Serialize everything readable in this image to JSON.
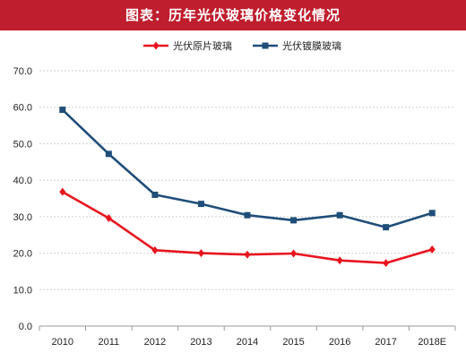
{
  "header": {
    "title": "图表：历年光伏玻璃价格变化情况",
    "background": "#bf1e2e"
  },
  "chart_data": {
    "type": "line",
    "categories": [
      "2010",
      "2011",
      "2012",
      "2013",
      "2014",
      "2015",
      "2016",
      "2017",
      "2018E"
    ],
    "series": [
      {
        "name": "光伏原片玻璃",
        "color": "#e8141e",
        "marker": "diamond",
        "values": [
          36.8,
          29.6,
          20.8,
          20.0,
          19.6,
          19.9,
          18.0,
          17.3,
          21.0
        ]
      },
      {
        "name": "光伏镀膜玻璃",
        "color": "#1f4e79",
        "marker": "square",
        "values": [
          59.3,
          47.2,
          36.0,
          33.5,
          30.4,
          29.0,
          30.4,
          27.1,
          31.0
        ]
      }
    ],
    "yticks": [
      "0.0",
      "10.0",
      "20.0",
      "30.0",
      "40.0",
      "50.0",
      "60.0",
      "70.0"
    ],
    "ylim": [
      0,
      70
    ],
    "grid": true,
    "legend": "top-center"
  }
}
